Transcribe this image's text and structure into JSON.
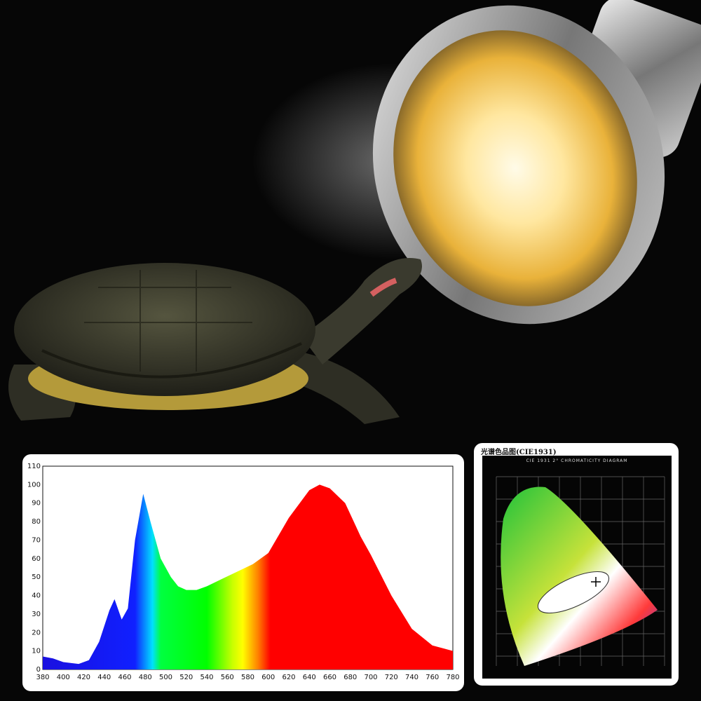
{
  "colors": {
    "background": "#060606",
    "lamp_glow": "#ffe9a8",
    "shell": "#3a3a2c",
    "panel": "#ffffff"
  },
  "cie_panel": {
    "title": "光谱色品图(CIE1931)",
    "subtitle": "CIE 1931 2° CHROMATICITY DIAGRAM"
  },
  "chart_data": {
    "type": "area",
    "title": "",
    "xlabel": "",
    "ylabel": "",
    "xlim": [
      380,
      780
    ],
    "ylim": [
      0,
      110
    ],
    "grid": false,
    "fill": "visible-spectrum gradient",
    "x_ticks": [
      380,
      400,
      420,
      440,
      460,
      480,
      500,
      520,
      540,
      560,
      580,
      600,
      620,
      640,
      660,
      680,
      700,
      720,
      740,
      760,
      780
    ],
    "y_ticks": [
      0,
      10,
      20,
      30,
      40,
      50,
      60,
      70,
      80,
      90,
      100,
      110
    ],
    "series": [
      {
        "x": [
          380,
          390,
          400,
          415,
          425,
          435,
          445,
          450,
          457,
          463,
          470,
          478,
          485,
          495,
          505,
          512,
          520,
          530,
          540,
          555,
          570,
          585,
          600,
          620,
          640,
          650,
          660,
          675,
          690,
          700,
          720,
          740,
          760,
          780
        ],
        "y": [
          7,
          6,
          4,
          3,
          5,
          15,
          32,
          38,
          27,
          33,
          70,
          95,
          80,
          60,
          50,
          45,
          43,
          43,
          45,
          49,
          53,
          57,
          63,
          82,
          97,
          100,
          98,
          90,
          72,
          62,
          40,
          22,
          13,
          10
        ]
      }
    ]
  }
}
